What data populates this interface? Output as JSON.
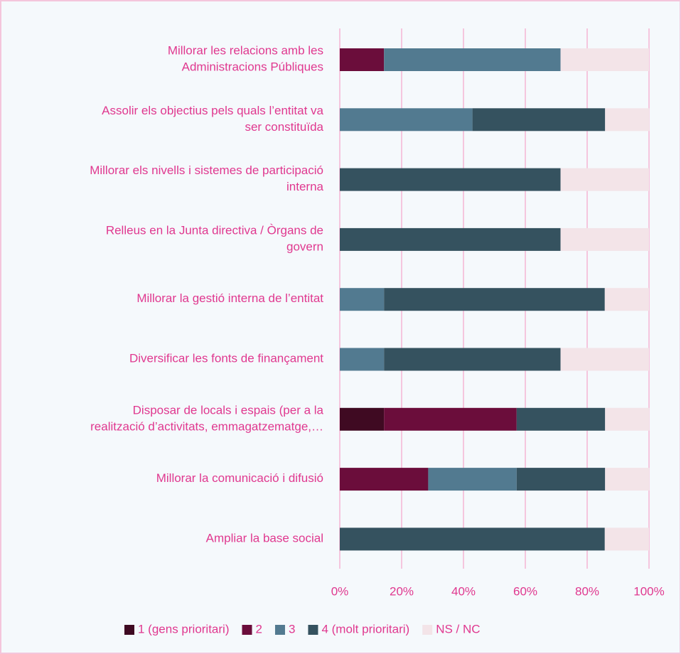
{
  "chart_data": {
    "type": "stacked_barh",
    "categories": [
      "Millorar les relacions amb les\nAdministracions Públiques",
      "Assolir els objectius pels quals l’entitat va\nser constituïda",
      "Millorar els nivells i sistemes de participació\ninterna",
      "Relleus en la Junta directiva / Òrgans de\ngovern",
      "Millorar la gestió interna de l’entitat",
      "Diversificar les fonts de finançament",
      "Disposar de locals i espais (per a la\nrealització d’activitats, emmagatzematge,…",
      "Millorar la comunicació i difusió",
      "Ampliar la base social"
    ],
    "series": [
      {
        "name": "1 (gens prioritari)",
        "color": "#3f0a22",
        "values": [
          0,
          0,
          0,
          0,
          0,
          0,
          14.3,
          0,
          0
        ]
      },
      {
        "name": "2",
        "color": "#6b0d3b",
        "values": [
          14.3,
          0,
          0,
          0,
          0,
          0,
          42.9,
          28.6,
          0
        ]
      },
      {
        "name": "3",
        "color": "#527a90",
        "values": [
          57.1,
          42.9,
          0,
          0,
          14.3,
          14.3,
          0,
          28.6,
          0
        ]
      },
      {
        "name": "4 (molt prioritari)",
        "color": "#35525f",
        "values": [
          0,
          42.9,
          71.4,
          71.4,
          71.4,
          57.1,
          28.6,
          28.6,
          85.7
        ]
      },
      {
        "name": "NS / NC",
        "color": "#f3e4e8",
        "values": [
          28.6,
          14.3,
          28.6,
          28.6,
          14.3,
          28.6,
          14.3,
          14.3,
          14.3
        ]
      }
    ],
    "xlim": [
      0,
      100
    ],
    "xticks": [
      {
        "value": 0,
        "label": "0%"
      },
      {
        "value": 20,
        "label": "20%"
      },
      {
        "value": 40,
        "label": "40%"
      },
      {
        "value": 60,
        "label": "60%"
      },
      {
        "value": 80,
        "label": "80%"
      },
      {
        "value": 100,
        "label": "100%"
      }
    ],
    "grid": true,
    "legend": "bottom"
  }
}
